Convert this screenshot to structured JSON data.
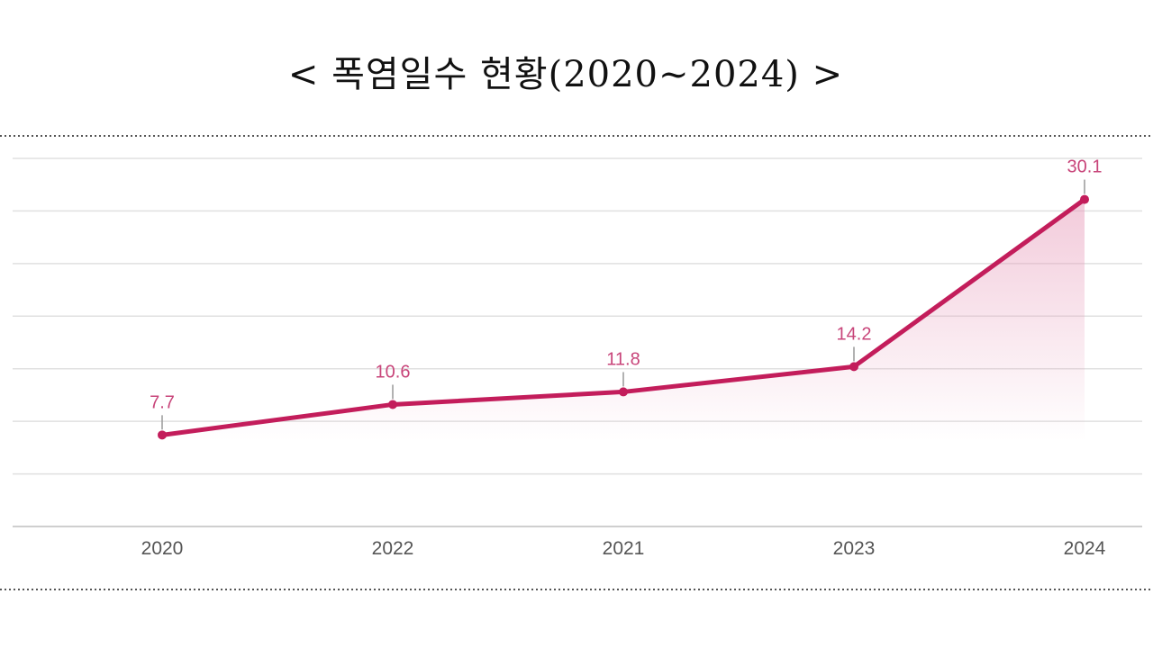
{
  "title": "< 폭염일수 현황(2020~2024) >",
  "colors": {
    "line": "#c31d5b",
    "area": "#e8a0bd",
    "value_label": "#c8457a",
    "grid": "#e0e0e0",
    "dotted_rule": "#555555"
  },
  "chart_data": {
    "type": "line",
    "categories": [
      "2020",
      "2022",
      "2021",
      "2023",
      "2024"
    ],
    "values": [
      7.7,
      10.6,
      11.8,
      14.2,
      30.1
    ],
    "value_labels": [
      "7.7",
      "10.6",
      "11.8",
      "14.2",
      "30.1"
    ],
    "title": "< 폭염일수 현황(2020~2024) >",
    "xlabel": "",
    "ylabel": "",
    "ylim": [
      -1,
      34
    ],
    "grid": true,
    "y_tick_labels_shown": false,
    "area_fill": true,
    "legend": "none"
  }
}
